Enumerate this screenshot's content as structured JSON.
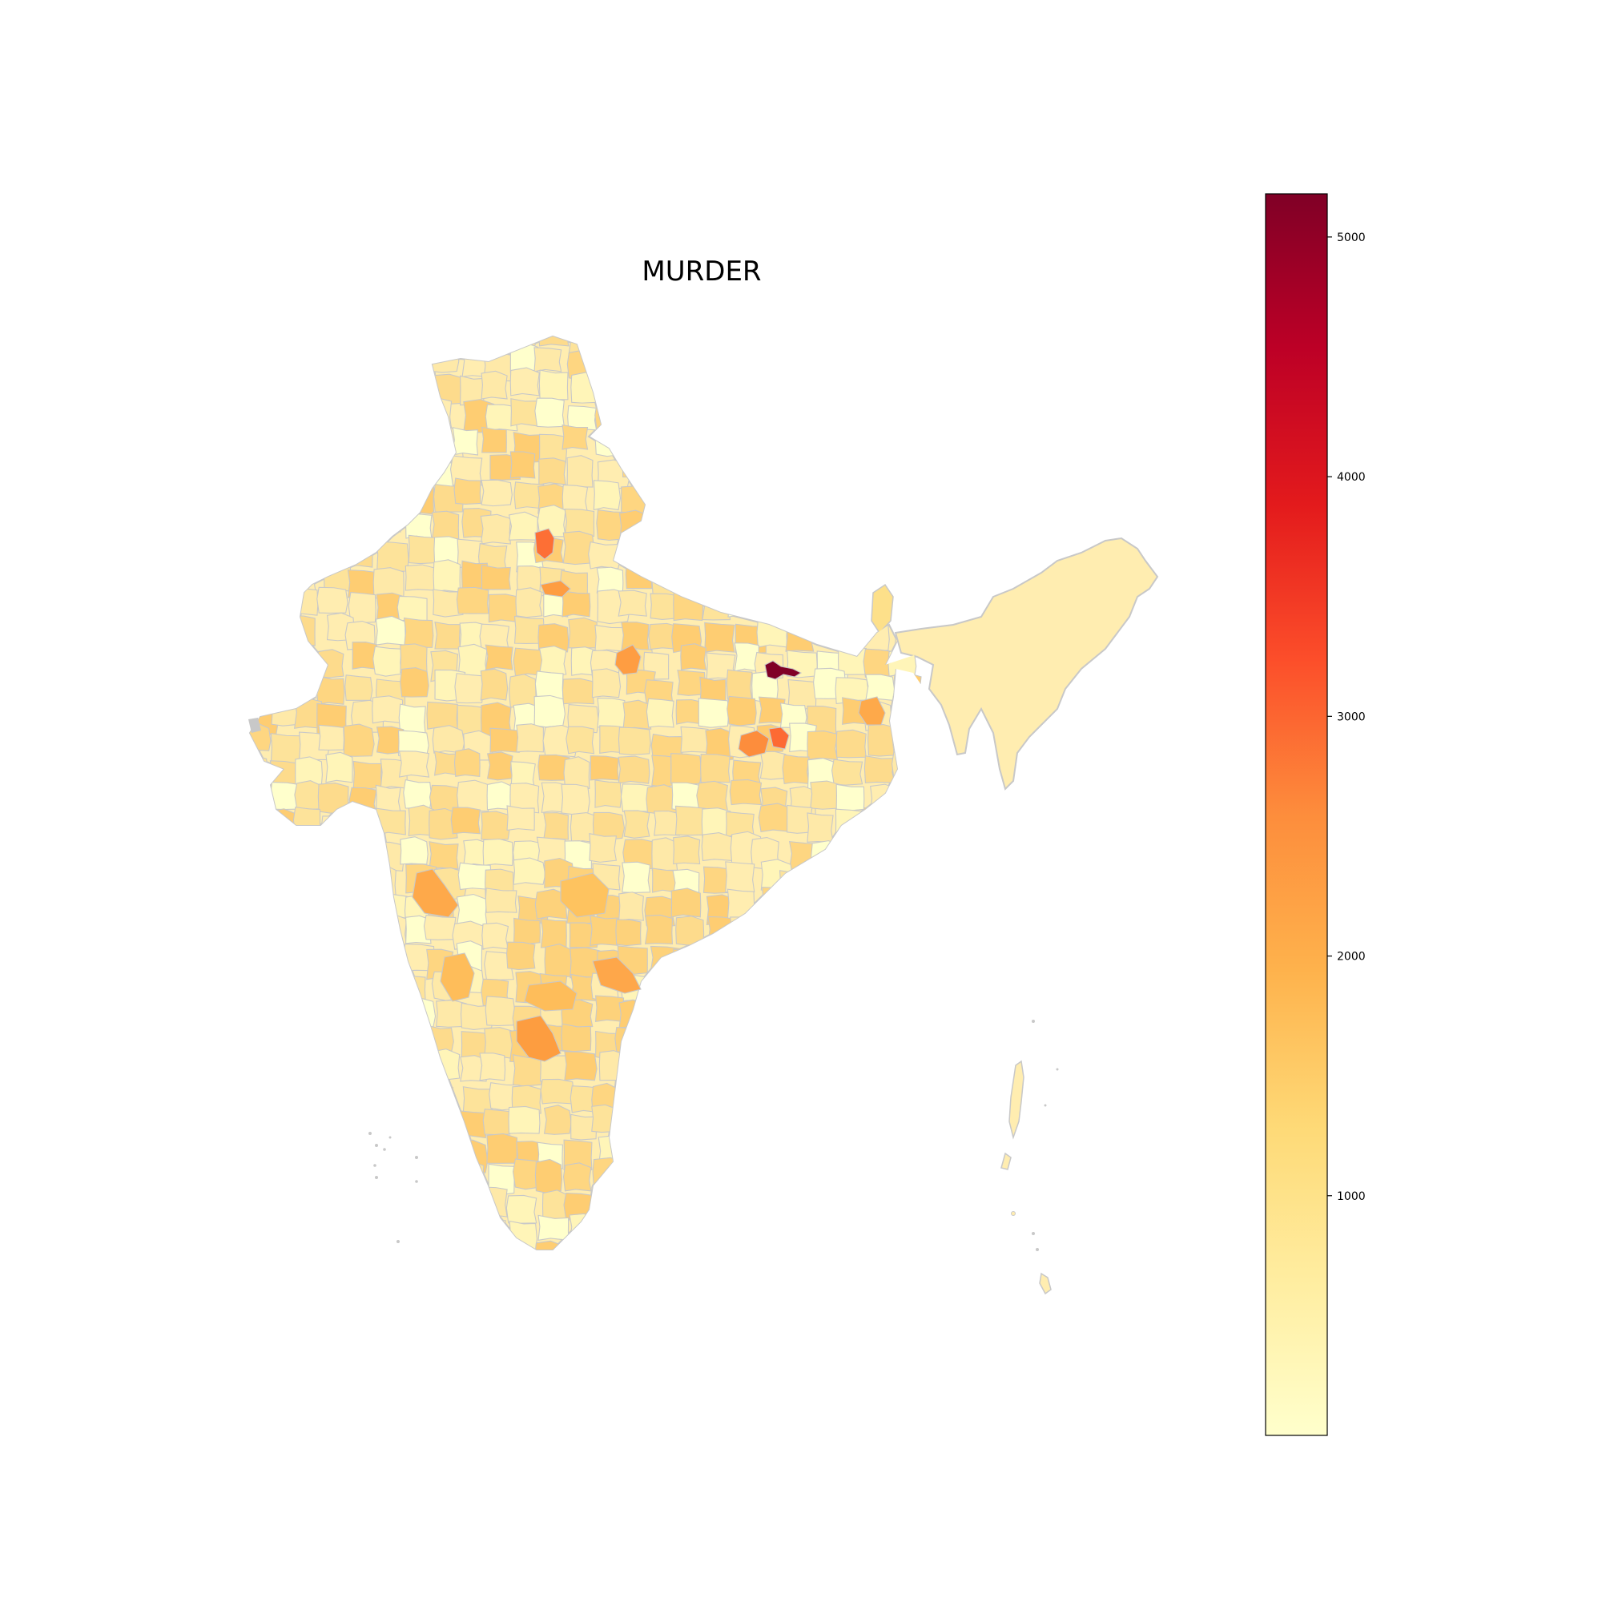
{
  "map": {
    "title": "MURDER",
    "type": "choropleth",
    "region": "India (districts)",
    "color_scheme": "YlOrRd",
    "boundary_color": "#c8c8c8",
    "background": "#ffffff"
  },
  "colorbar": {
    "min": 0,
    "max": 5180,
    "ticks": [
      1000,
      2000,
      3000,
      4000,
      5000
    ],
    "tick_labels": [
      "1000",
      "2000",
      "3000",
      "4000",
      "5000"
    ],
    "stops": [
      "#ffffcc",
      "#ffeda0",
      "#fed976",
      "#feb24c",
      "#fd8d3c",
      "#fc4e2a",
      "#e31a1c",
      "#bd0026",
      "#800026"
    ]
  },
  "highlighted_districts": [
    {
      "value": 5180
    },
    {
      "value": 2950
    },
    {
      "value": 2800
    },
    {
      "value": 2650
    },
    {
      "value": 2300
    },
    {
      "value": 2200
    },
    {
      "value": 2100
    },
    {
      "value": 2000
    },
    {
      "value": 1900
    },
    {
      "value": 1850
    }
  ]
}
